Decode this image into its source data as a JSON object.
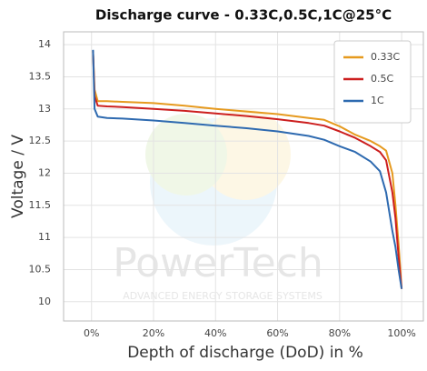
{
  "chart_data": {
    "type": "line",
    "title": "Discharge curve  -  0.33C,0.5C,1C@25°C",
    "xlabel": "Depth of discharge (DoD) in %",
    "ylabel": "Voltage / V",
    "annotations": [
      "PowerTech",
      "ADVANCED ENERGY STORAGE SYSTEMS"
    ],
    "x": [
      0.5,
      1,
      2,
      5,
      10,
      20,
      30,
      40,
      50,
      60,
      70,
      75,
      80,
      85,
      90,
      93,
      95,
      97,
      98,
      99,
      100
    ],
    "series": [
      {
        "name": "0.33C",
        "color": "#e69a1f",
        "values": [
          13.9,
          13.3,
          13.12,
          13.12,
          13.11,
          13.09,
          13.05,
          13.0,
          12.96,
          12.92,
          12.86,
          12.83,
          12.73,
          12.6,
          12.5,
          12.42,
          12.35,
          12.0,
          11.5,
          10.9,
          10.2
        ]
      },
      {
        "name": "0.5C",
        "color": "#cc1f1f",
        "values": [
          13.9,
          13.2,
          13.05,
          13.04,
          13.03,
          13.0,
          12.97,
          12.93,
          12.89,
          12.84,
          12.78,
          12.74,
          12.65,
          12.55,
          12.42,
          12.33,
          12.2,
          11.7,
          11.3,
          10.7,
          10.2
        ]
      },
      {
        "name": "1C",
        "color": "#2e6ab0",
        "values": [
          13.92,
          13.0,
          12.88,
          12.86,
          12.85,
          12.82,
          12.78,
          12.74,
          12.7,
          12.65,
          12.58,
          12.52,
          12.42,
          12.33,
          12.18,
          12.03,
          11.7,
          11.1,
          10.85,
          10.5,
          10.2
        ]
      }
    ],
    "xlim": [
      -9,
      107
    ],
    "xticks": [
      {
        "value": 0,
        "label": "0%"
      },
      {
        "value": 20,
        "label": "20%"
      },
      {
        "value": 40,
        "label": "40%"
      },
      {
        "value": 60,
        "label": "60%"
      },
      {
        "value": 80,
        "label": "80%"
      },
      {
        "value": 100,
        "label": "100%"
      }
    ],
    "ylim": [
      9.7,
      14.2
    ],
    "yticks": [
      10,
      10.5,
      11,
      11.5,
      12,
      12.5,
      13,
      13.5,
      14
    ],
    "grid": true,
    "legend": "upper right"
  }
}
